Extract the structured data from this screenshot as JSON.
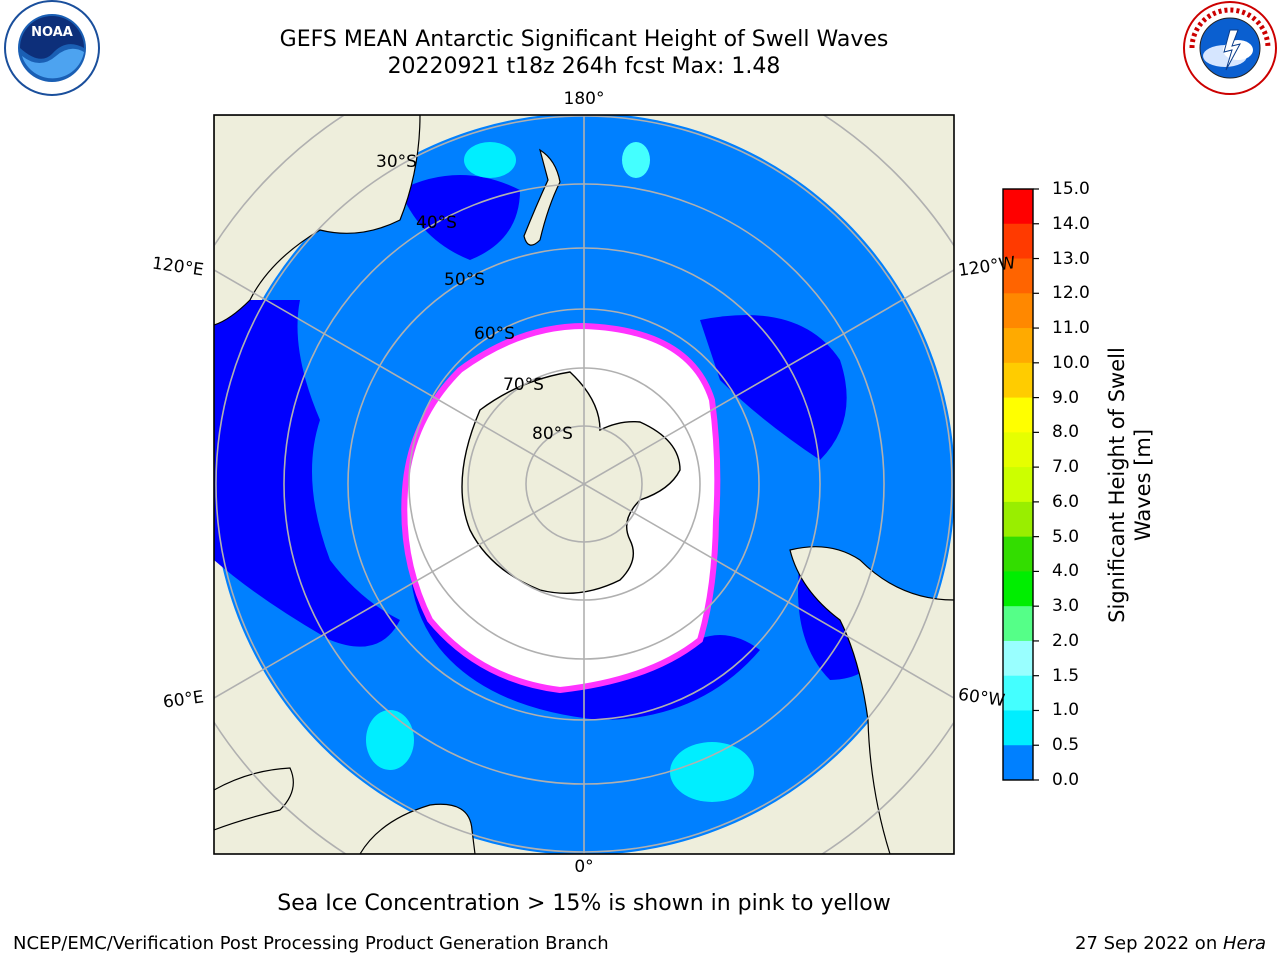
{
  "header": {
    "title_line1": "GEFS MEAN Antarctic Significant Height of Swell Waves",
    "title_line2": "20220921 t18z 264h fcst   Max: 1.48"
  },
  "logos": {
    "left": "noaa-logo",
    "right": "national-weather-service-logo",
    "left_text": "NOAA",
    "right_text": "NATIONAL WEATHER SERVICE"
  },
  "map": {
    "projection": "south-polar-stereographic",
    "meridian_labels": {
      "top": "180°",
      "bottom": "0°",
      "left_upper": "120°E",
      "left_lower": "60°E",
      "right_upper": "120°W",
      "right_lower": "60°W"
    },
    "parallel_labels": [
      "30°S",
      "40°S",
      "50°S",
      "60°S",
      "70°S",
      "80°S"
    ],
    "colors": {
      "land": "#eeeedc",
      "ocean_main": "#0080ff",
      "ocean_low": "#0000ff",
      "ice_edge": "#ff33ff",
      "ice_interior": "#ffffff",
      "grid": "#b0b0b0"
    }
  },
  "colorbar": {
    "title": "Significant Height of Swell Waves [m]",
    "ticks": [
      "15.0",
      "14.0",
      "13.0",
      "12.0",
      "11.0",
      "10.0",
      "9.0",
      "8.0",
      "7.0",
      "6.0",
      "5.0",
      "4.0",
      "3.0",
      "2.0",
      "1.5",
      "1.0",
      "0.5",
      "0.0"
    ],
    "colors": [
      "#ff0000",
      "#ff3a00",
      "#ff6400",
      "#ff8800",
      "#ffaa00",
      "#ffcc00",
      "#ffff00",
      "#e6ff00",
      "#ccff00",
      "#99ee00",
      "#33dd00",
      "#00ee00",
      "#55ff88",
      "#99ffff",
      "#44ffff",
      "#00eeff",
      "#0080ff",
      "#0000ff"
    ]
  },
  "footer": {
    "note": "Sea Ice Concentration > 15% is shown in pink to yellow",
    "credit": "NCEP/EMC/Verification Post Processing Product Generation Branch",
    "date": "27 Sep 2022 on ",
    "machine": "Hera"
  }
}
